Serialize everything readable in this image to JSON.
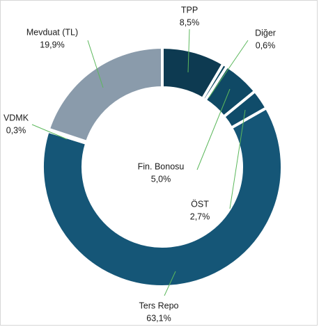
{
  "chart_data": {
    "type": "donut",
    "categories": [
      "TPP",
      "Diğer",
      "Fin. Bonosu",
      "ÖST",
      "Ters Repo",
      "VDMK",
      "Mevduat (TL)"
    ],
    "values": [
      8.5,
      0.6,
      5.0,
      2.7,
      63.1,
      0.3,
      19.9
    ],
    "value_labels": [
      "8,5%",
      "0,6%",
      "5,0%",
      "2,7%",
      "63,1%",
      "0,3%",
      "19,9%"
    ],
    "colors": [
      "#0d3a51",
      "#0e4660",
      "#0f4965",
      "#104c6a",
      "#155677",
      "#7a93a6",
      "#8a9bab"
    ]
  }
}
